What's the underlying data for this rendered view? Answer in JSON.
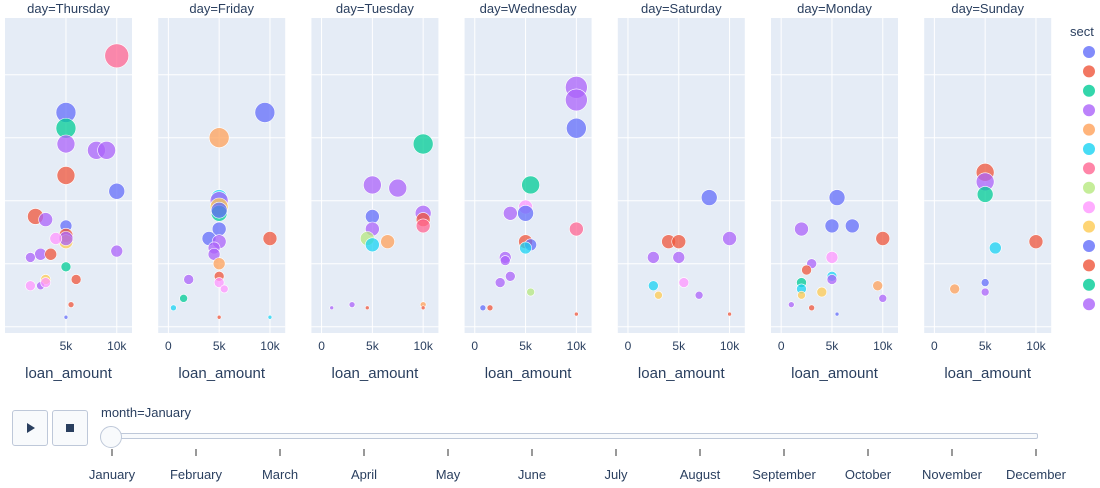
{
  "chart_data": {
    "type": "scatter",
    "subtype": "bubble",
    "facet_column": "day",
    "facets": [
      {
        "label": "day=Thursday",
        "points": [
          {
            "x": 10000,
            "y": 83,
            "s": 12,
            "c": 6
          },
          {
            "x": 5000,
            "y": 65,
            "s": 10,
            "c": 0
          },
          {
            "x": 5000,
            "y": 60,
            "s": 10,
            "c": 2
          },
          {
            "x": 5000,
            "y": 55,
            "s": 9,
            "c": 3
          },
          {
            "x": 8000,
            "y": 53,
            "s": 9,
            "c": 3
          },
          {
            "x": 9000,
            "y": 53,
            "s": 9,
            "c": 3
          },
          {
            "x": 5000,
            "y": 45,
            "s": 9,
            "c": 1
          },
          {
            "x": 10000,
            "y": 40,
            "s": 8,
            "c": 0
          },
          {
            "x": 2000,
            "y": 32,
            "s": 8,
            "c": 1
          },
          {
            "x": 3000,
            "y": 31,
            "s": 7,
            "c": 3
          },
          {
            "x": 5000,
            "y": 29,
            "s": 6,
            "c": 0
          },
          {
            "x": 5000,
            "y": 26,
            "s": 7,
            "c": 11
          },
          {
            "x": 5000,
            "y": 24,
            "s": 7,
            "c": 9
          },
          {
            "x": 5000,
            "y": 25,
            "s": 7,
            "c": 3
          },
          {
            "x": 4000,
            "y": 25,
            "s": 6,
            "c": 8
          },
          {
            "x": 2500,
            "y": 20,
            "s": 6,
            "c": 3
          },
          {
            "x": 1500,
            "y": 19,
            "s": 5,
            "c": 3
          },
          {
            "x": 3500,
            "y": 20,
            "s": 6,
            "c": 1
          },
          {
            "x": 10000,
            "y": 21,
            "s": 6,
            "c": 3
          },
          {
            "x": 5000,
            "y": 16,
            "s": 5,
            "c": 12
          },
          {
            "x": 3000,
            "y": 12,
            "s": 5,
            "c": 9
          },
          {
            "x": 2500,
            "y": 10,
            "s": 4,
            "c": 3
          },
          {
            "x": 3000,
            "y": 11,
            "s": 5,
            "c": 8
          },
          {
            "x": 6000,
            "y": 12,
            "s": 5,
            "c": 1
          },
          {
            "x": 1500,
            "y": 10,
            "s": 5,
            "c": 8
          },
          {
            "x": 5500,
            "y": 4,
            "s": 3,
            "c": 1
          },
          {
            "x": 5000,
            "y": 0,
            "s": 2,
            "c": 0
          }
        ]
      },
      {
        "label": "day=Friday",
        "points": [
          {
            "x": 9500,
            "y": 65,
            "s": 10,
            "c": 0
          },
          {
            "x": 5000,
            "y": 57,
            "s": 10,
            "c": 4
          },
          {
            "x": 5000,
            "y": 38,
            "s": 8,
            "c": 5
          },
          {
            "x": 5000,
            "y": 37,
            "s": 9,
            "c": 3
          },
          {
            "x": 5000,
            "y": 35,
            "s": 9,
            "c": 9
          },
          {
            "x": 5000,
            "y": 33,
            "s": 8,
            "c": 12
          },
          {
            "x": 5000,
            "y": 34,
            "s": 8,
            "c": 0
          },
          {
            "x": 5000,
            "y": 28,
            "s": 7,
            "c": 0
          },
          {
            "x": 4000,
            "y": 25,
            "s": 7,
            "c": 0
          },
          {
            "x": 10000,
            "y": 25,
            "s": 7,
            "c": 1
          },
          {
            "x": 5000,
            "y": 24,
            "s": 7,
            "c": 3
          },
          {
            "x": 4500,
            "y": 22,
            "s": 6,
            "c": 3
          },
          {
            "x": 4500,
            "y": 20,
            "s": 6,
            "c": 3
          },
          {
            "x": 5000,
            "y": 17,
            "s": 6,
            "c": 4
          },
          {
            "x": 2000,
            "y": 12,
            "s": 5,
            "c": 3
          },
          {
            "x": 5000,
            "y": 13,
            "s": 5,
            "c": 1
          },
          {
            "x": 5000,
            "y": 11,
            "s": 5,
            "c": 8
          },
          {
            "x": 5500,
            "y": 9,
            "s": 4,
            "c": 8
          },
          {
            "x": 1500,
            "y": 6,
            "s": 4,
            "c": 12
          },
          {
            "x": 500,
            "y": 3,
            "s": 3,
            "c": 5
          },
          {
            "x": 10000,
            "y": 0,
            "s": 2,
            "c": 5
          },
          {
            "x": 5000,
            "y": 0,
            "s": 2,
            "c": 1
          }
        ]
      },
      {
        "label": "day=Tuesday",
        "points": [
          {
            "x": 10000,
            "y": 55,
            "s": 10,
            "c": 2
          },
          {
            "x": 5000,
            "y": 42,
            "s": 9,
            "c": 3
          },
          {
            "x": 7500,
            "y": 41,
            "s": 9,
            "c": 3
          },
          {
            "x": 10000,
            "y": 33,
            "s": 8,
            "c": 3
          },
          {
            "x": 5000,
            "y": 32,
            "s": 7,
            "c": 0
          },
          {
            "x": 10000,
            "y": 31,
            "s": 7,
            "c": 1
          },
          {
            "x": 10000,
            "y": 29,
            "s": 7,
            "c": 6
          },
          {
            "x": 5000,
            "y": 28,
            "s": 7,
            "c": 3
          },
          {
            "x": 4500,
            "y": 25,
            "s": 7,
            "c": 7
          },
          {
            "x": 5000,
            "y": 23,
            "s": 7,
            "c": 5
          },
          {
            "x": 6500,
            "y": 24,
            "s": 7,
            "c": 4
          },
          {
            "x": 3000,
            "y": 4,
            "s": 3,
            "c": 3
          },
          {
            "x": 10000,
            "y": 4,
            "s": 3,
            "c": 4
          },
          {
            "x": 1000,
            "y": 3,
            "s": 2,
            "c": 3
          },
          {
            "x": 4500,
            "y": 3,
            "s": 2,
            "c": 11
          },
          {
            "x": 10000,
            "y": 3,
            "s": 2,
            "c": 11
          }
        ]
      },
      {
        "label": "day=Wednesday",
        "points": [
          {
            "x": 10000,
            "y": 73,
            "s": 11,
            "c": 3
          },
          {
            "x": 10000,
            "y": 69,
            "s": 11,
            "c": 3
          },
          {
            "x": 10000,
            "y": 60,
            "s": 10,
            "c": 0
          },
          {
            "x": 5500,
            "y": 42,
            "s": 9,
            "c": 2
          },
          {
            "x": 5000,
            "y": 35,
            "s": 7,
            "c": 8
          },
          {
            "x": 5000,
            "y": 33,
            "s": 8,
            "c": 0
          },
          {
            "x": 3500,
            "y": 33,
            "s": 7,
            "c": 3
          },
          {
            "x": 10000,
            "y": 28,
            "s": 7,
            "c": 6
          },
          {
            "x": 5000,
            "y": 24,
            "s": 7,
            "c": 1
          },
          {
            "x": 5500,
            "y": 23,
            "s": 6,
            "c": 0
          },
          {
            "x": 5000,
            "y": 22,
            "s": 6,
            "c": 5
          },
          {
            "x": 3000,
            "y": 19,
            "s": 6,
            "c": 3
          },
          {
            "x": 3000,
            "y": 18,
            "s": 5,
            "c": 3
          },
          {
            "x": 3500,
            "y": 13,
            "s": 5,
            "c": 3
          },
          {
            "x": 2500,
            "y": 11,
            "s": 5,
            "c": 3
          },
          {
            "x": 5500,
            "y": 8,
            "s": 4,
            "c": 7
          },
          {
            "x": 1500,
            "y": 3,
            "s": 3,
            "c": 1
          },
          {
            "x": 800,
            "y": 3,
            "s": 3,
            "c": 10
          },
          {
            "x": 10000,
            "y": 1,
            "s": 2,
            "c": 1
          }
        ]
      },
      {
        "label": "day=Saturday",
        "points": [
          {
            "x": 8000,
            "y": 38,
            "s": 8,
            "c": 0
          },
          {
            "x": 4000,
            "y": 24,
            "s": 7,
            "c": 1
          },
          {
            "x": 5000,
            "y": 24,
            "s": 7,
            "c": 1
          },
          {
            "x": 10000,
            "y": 25,
            "s": 7,
            "c": 3
          },
          {
            "x": 2500,
            "y": 19,
            "s": 6,
            "c": 3
          },
          {
            "x": 5000,
            "y": 19,
            "s": 6,
            "c": 3
          },
          {
            "x": 2500,
            "y": 10,
            "s": 5,
            "c": 5
          },
          {
            "x": 5500,
            "y": 11,
            "s": 5,
            "c": 8
          },
          {
            "x": 3000,
            "y": 7,
            "s": 4,
            "c": 9
          },
          {
            "x": 7000,
            "y": 7,
            "s": 4,
            "c": 3
          },
          {
            "x": 10000,
            "y": 1,
            "s": 2,
            "c": 1
          }
        ]
      },
      {
        "label": "day=Monday",
        "points": [
          {
            "x": 5500,
            "y": 38,
            "s": 8,
            "c": 0
          },
          {
            "x": 5000,
            "y": 29,
            "s": 7,
            "c": 0
          },
          {
            "x": 7000,
            "y": 29,
            "s": 7,
            "c": 0
          },
          {
            "x": 2000,
            "y": 28,
            "s": 7,
            "c": 3
          },
          {
            "x": 10000,
            "y": 25,
            "s": 7,
            "c": 1
          },
          {
            "x": 5000,
            "y": 19,
            "s": 6,
            "c": 8
          },
          {
            "x": 3000,
            "y": 17,
            "s": 5,
            "c": 3
          },
          {
            "x": 2500,
            "y": 15,
            "s": 5,
            "c": 1
          },
          {
            "x": 5000,
            "y": 13,
            "s": 5,
            "c": 5
          },
          {
            "x": 5000,
            "y": 12,
            "s": 5,
            "c": 3
          },
          {
            "x": 2000,
            "y": 11,
            "s": 5,
            "c": 12
          },
          {
            "x": 2000,
            "y": 9,
            "s": 5,
            "c": 5
          },
          {
            "x": 4000,
            "y": 8,
            "s": 5,
            "c": 9
          },
          {
            "x": 9500,
            "y": 10,
            "s": 5,
            "c": 4
          },
          {
            "x": 10000,
            "y": 6,
            "s": 4,
            "c": 3
          },
          {
            "x": 2000,
            "y": 7,
            "s": 4,
            "c": 9
          },
          {
            "x": 1000,
            "y": 4,
            "s": 3,
            "c": 3
          },
          {
            "x": 3000,
            "y": 3,
            "s": 3,
            "c": 11
          },
          {
            "x": 5500,
            "y": 1,
            "s": 2,
            "c": 0
          }
        ]
      },
      {
        "label": "day=Sunday",
        "points": [
          {
            "x": 5000,
            "y": 46,
            "s": 9,
            "c": 1
          },
          {
            "x": 5000,
            "y": 43,
            "s": 9,
            "c": 3
          },
          {
            "x": 5000,
            "y": 39,
            "s": 8,
            "c": 12
          },
          {
            "x": 10000,
            "y": 24,
            "s": 7,
            "c": 1
          },
          {
            "x": 6000,
            "y": 22,
            "s": 6,
            "c": 5
          },
          {
            "x": 2000,
            "y": 9,
            "s": 5,
            "c": 4
          },
          {
            "x": 5000,
            "y": 11,
            "s": 4,
            "c": 0
          },
          {
            "x": 5000,
            "y": 8,
            "s": 4,
            "c": 3
          }
        ]
      }
    ],
    "x_axis": {
      "title": "loan_amount",
      "range": [
        -1000,
        11500
      ]
    },
    "x_ticks_first_facet": [
      "5k",
      "10k"
    ],
    "x_ticks_other_facets": [
      "0",
      "5k",
      "10k"
    ],
    "x_tick_values_first_facet": [
      5000,
      10000
    ],
    "x_tick_values_other_facets": [
      0,
      5000,
      10000
    ],
    "y_axis": {
      "range": [
        -5,
        95
      ],
      "gridline_values": [
        -3,
        17,
        37,
        57,
        77
      ],
      "tick_labels_visible": false
    },
    "grid": true,
    "legend": {
      "title": "sect",
      "placement": "right",
      "colors": [
        "#636efa",
        "#ef553b",
        "#00cc96",
        "#ab63fa",
        "#ffa15a",
        "#19d3f3",
        "#ff6692",
        "#b6e880",
        "#ff97ff",
        "#fecb52",
        "#636efa",
        "#ef553b",
        "#00cc96",
        "#ab63fa"
      ]
    }
  },
  "animation": {
    "frame_label": "month=January",
    "current_index": 0,
    "frames": [
      "January",
      "February",
      "March",
      "April",
      "May",
      "June",
      "July",
      "August",
      "September",
      "October",
      "November",
      "December"
    ],
    "play_icon": "play-icon",
    "stop_icon": "stop-icon"
  },
  "colors": {
    "plot_background": "#e5ecf6",
    "gridline": "#ffffff",
    "text": "#2a3f5f"
  }
}
